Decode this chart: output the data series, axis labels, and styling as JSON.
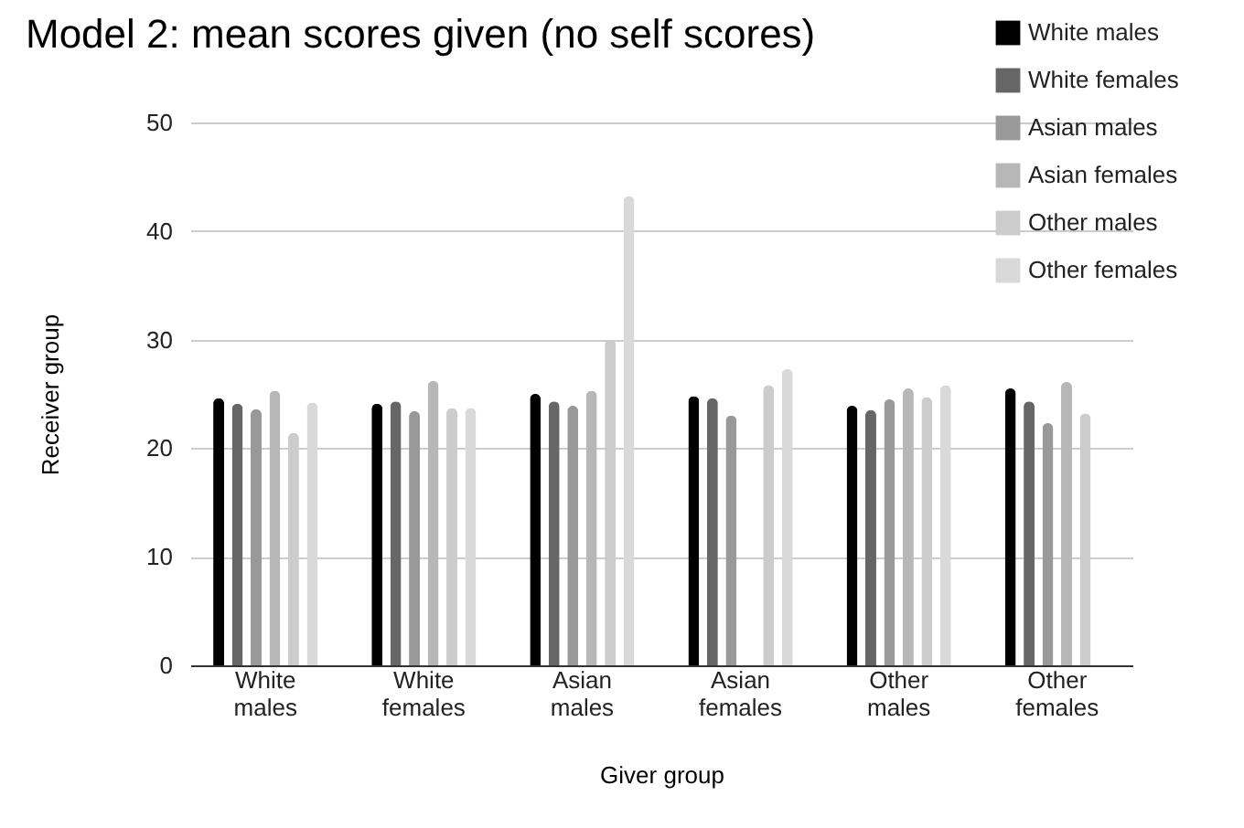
{
  "chart_data": {
    "type": "bar",
    "title": "Model 2: mean scores given (no self scores)",
    "xlabel": "Giver group",
    "ylabel": "Receiver group",
    "categories": [
      "White males",
      "White females",
      "Asian males",
      "Asian females",
      "Other males",
      "Other females"
    ],
    "series": [
      {
        "name": "White males",
        "color": "#000000",
        "values": [
          24.6,
          24.1,
          25.0,
          24.8,
          23.9,
          25.5
        ]
      },
      {
        "name": "White females",
        "color": "#666666",
        "values": [
          24.1,
          24.3,
          24.3,
          24.6,
          23.5,
          24.3
        ]
      },
      {
        "name": "Asian males",
        "color": "#999999",
        "values": [
          23.6,
          23.4,
          23.9,
          23.0,
          24.5,
          22.3
        ]
      },
      {
        "name": "Asian females",
        "color": "#b7b7b7",
        "values": [
          25.3,
          26.2,
          25.3,
          null,
          25.5,
          26.1
        ]
      },
      {
        "name": "Other males",
        "color": "#cccccc",
        "values": [
          21.4,
          23.7,
          30.0,
          25.8,
          24.7,
          23.2
        ]
      },
      {
        "name": "Other females",
        "color": "#d9d9d9",
        "values": [
          24.2,
          23.7,
          43.2,
          27.3,
          25.8,
          null
        ]
      }
    ],
    "ylim": [
      0,
      50
    ],
    "yticks": [
      0,
      10,
      20,
      30,
      40,
      50
    ],
    "grid": "y",
    "legend": "top right"
  }
}
